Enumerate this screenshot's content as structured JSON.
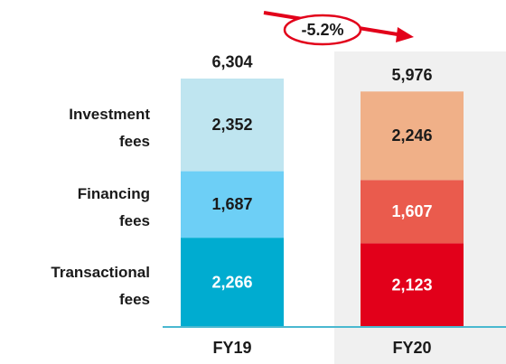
{
  "chart_data": {
    "type": "stacked_bar",
    "categories": [
      "FY19",
      "FY20"
    ],
    "series": [
      {
        "name": "Transactional fees",
        "colors": [
          "#00acd0",
          "#e2001a"
        ],
        "values": [
          2266,
          2123
        ],
        "value_labels": [
          "2,266",
          "2,123"
        ]
      },
      {
        "name": "Financing fees",
        "colors": [
          "#6dcff6",
          "#ea5b4d"
        ],
        "values": [
          1687,
          1607
        ],
        "value_labels": [
          "1,687",
          "1,607"
        ]
      },
      {
        "name": "Investment fees",
        "colors": [
          "#bfe5f0",
          "#f0b088"
        ],
        "values": [
          2352,
          2246
        ],
        "value_labels": [
          "2,352",
          "2,246"
        ]
      }
    ],
    "totals": [
      6304,
      5976
    ],
    "total_labels": [
      "6,304",
      "5,976"
    ],
    "annotation": "-5.2%"
  }
}
